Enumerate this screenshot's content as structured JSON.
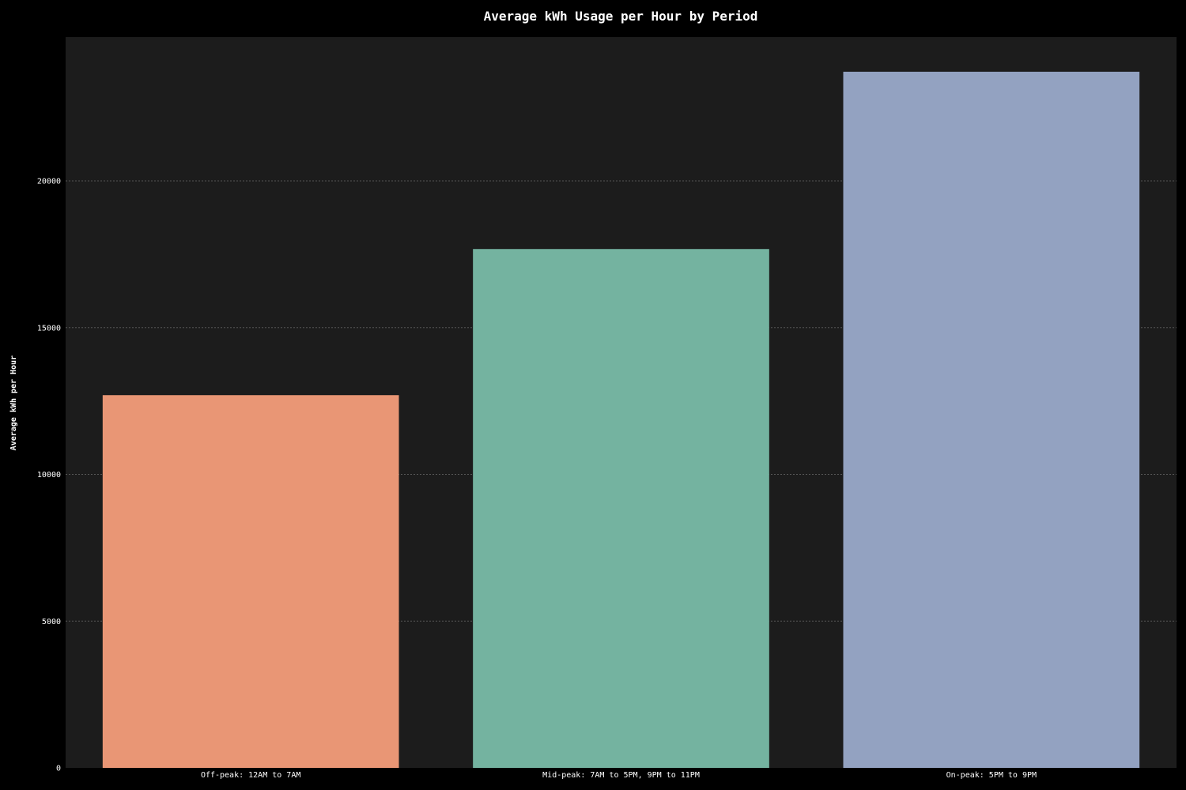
{
  "chart_data": {
    "type": "bar",
    "title": "Average kWh Usage per Hour by Period",
    "xlabel": "",
    "ylabel": "Average kWh per Hour",
    "categories": [
      "Off-peak: 12AM to 7AM",
      "Mid-peak: 7AM to 5PM, 9PM to 11PM",
      "On-peak: 5PM to 9PM"
    ],
    "values": [
      12700,
      17680,
      23720
    ],
    "colors": [
      "#e99675",
      "#74b3a0",
      "#93a2c1"
    ],
    "ylim": [
      0,
      24900
    ],
    "yticks": [
      0,
      5000,
      10000,
      15000,
      20000
    ],
    "grid": true,
    "background": "#000000",
    "plot_background": "#1c1c1c",
    "grid_color": "#555555"
  }
}
